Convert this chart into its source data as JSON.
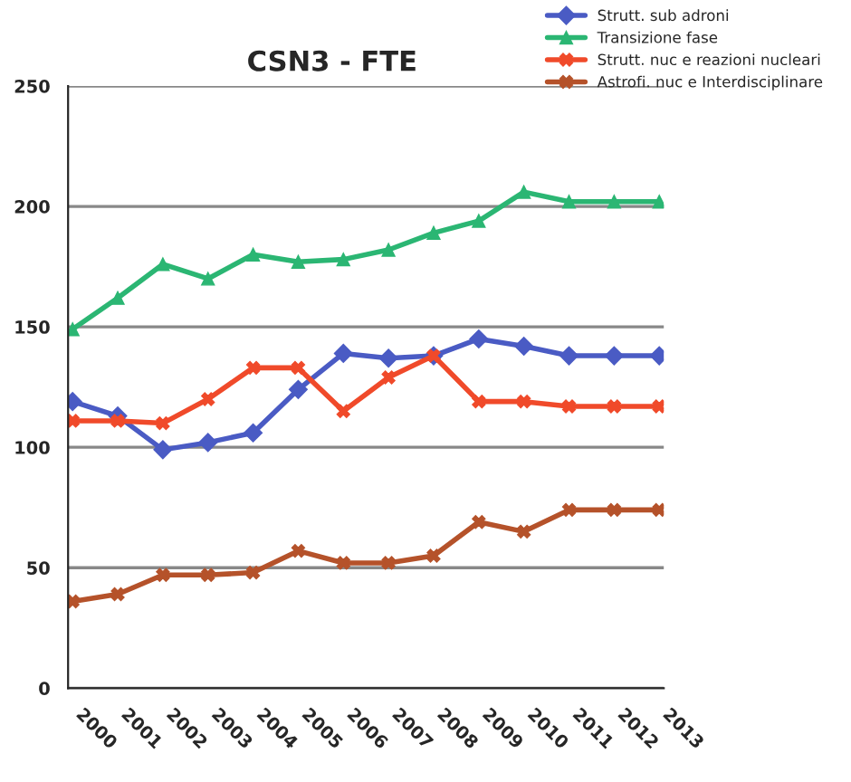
{
  "chart_data": {
    "type": "line",
    "title": "CSN3 - FTE",
    "categories": [
      "2000",
      "2001",
      "2002",
      "2003",
      "2004",
      "2005",
      "2006",
      "2007",
      "2008",
      "2009",
      "2010",
      "2011",
      "2012",
      "2013"
    ],
    "series": [
      {
        "name": "Strutt. sub adroni",
        "color": "#4a5bc4",
        "marker": "diamond",
        "values": [
          119,
          113,
          99,
          102,
          106,
          124,
          139,
          137,
          138,
          145,
          142,
          138,
          138,
          138
        ]
      },
      {
        "name": "Transizione fase",
        "color": "#2bb673",
        "marker": "triangle",
        "values": [
          149,
          162,
          176,
          170,
          180,
          177,
          178,
          182,
          189,
          194,
          206,
          202,
          202,
          202
        ]
      },
      {
        "name": "Strutt. nuc e reazioni nucleari",
        "color": "#f04a2a",
        "marker": "cross",
        "values": [
          111,
          111,
          110,
          120,
          133,
          133,
          115,
          129,
          138,
          119,
          119,
          117,
          117,
          117
        ]
      },
      {
        "name": "Astrofi. nuc e Interdisciplinare",
        "color": "#b5522a",
        "marker": "cross",
        "values": [
          36,
          39,
          47,
          47,
          48,
          57,
          52,
          52,
          55,
          69,
          65,
          74,
          74,
          74
        ]
      }
    ],
    "ylim": [
      0,
      250
    ],
    "yticks": [
      0,
      50,
      100,
      150,
      200,
      250
    ],
    "grid": "y",
    "legend": "top right"
  }
}
